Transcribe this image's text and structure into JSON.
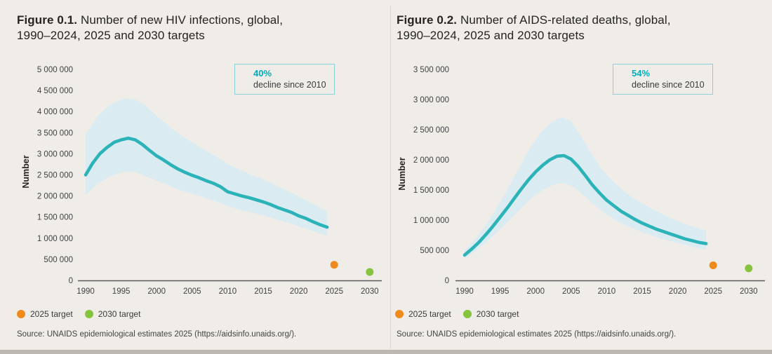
{
  "page": {
    "background_color": "#f0ede8",
    "divider_color": "#d8d4cf"
  },
  "colors": {
    "trend_line": "#2bb3b8",
    "uncertainty_band": "#daecf2",
    "annotation_accent": "#00aebb",
    "annotation_border": "#8ad0d9",
    "target_2025": "#ef8a1d",
    "target_2030": "#86c33e",
    "axis_line": "#59595b",
    "tick_text": "#414042"
  },
  "figures": [
    {
      "title_prefix": "Figure 0.1.",
      "title_line1": " Number of new HIV infections, global,",
      "title_line2": "1990–2024, 2025 and 2030 targets",
      "ylabel": "Number",
      "annotation": {
        "value": "40%",
        "text": "decline since 2010"
      },
      "legend": [
        {
          "label": "2025 target",
          "color": "#ef8a1d"
        },
        {
          "label": "2030 target",
          "color": "#86c33e"
        }
      ],
      "source": "Source: UNAIDS epidemiological estimates 2025 (https://aidsinfo.unaids.org/).",
      "chart_data": {
        "type": "line",
        "title": "Number of new HIV infections, global, 1990–2024, 2025 and 2030 targets",
        "xlabel": "",
        "ylabel": "Number",
        "ylim": [
          0,
          5000000
        ],
        "ytick_step": 500000,
        "xticks": [
          1990,
          1995,
          2000,
          2005,
          2010,
          2015,
          2020,
          2025,
          2030
        ],
        "grid": false,
        "annotation": "40% decline since 2010",
        "years": [
          1990,
          1991,
          1992,
          1993,
          1994,
          1995,
          1996,
          1997,
          1998,
          1999,
          2000,
          2001,
          2002,
          2003,
          2004,
          2005,
          2006,
          2007,
          2008,
          2009,
          2010,
          2011,
          2012,
          2013,
          2014,
          2015,
          2016,
          2017,
          2018,
          2019,
          2020,
          2021,
          2022,
          2023,
          2024
        ],
        "series": [
          {
            "name": "New HIV infections (estimate)",
            "values": [
              2500000,
              2780000,
              3000000,
              3150000,
              3270000,
              3330000,
              3370000,
              3330000,
              3220000,
              3080000,
              2950000,
              2850000,
              2740000,
              2640000,
              2560000,
              2490000,
              2430000,
              2360000,
              2300000,
              2220000,
              2100000,
              2050000,
              2000000,
              1960000,
              1910000,
              1860000,
              1800000,
              1730000,
              1670000,
              1610000,
              1530000,
              1470000,
              1390000,
              1320000,
              1260000
            ]
          }
        ],
        "band": {
          "name": "Uncertainty bounds",
          "upper": [
            3450000,
            3720000,
            3950000,
            4100000,
            4220000,
            4280000,
            4320000,
            4280000,
            4200000,
            4060000,
            3900000,
            3760000,
            3620000,
            3490000,
            3370000,
            3270000,
            3170000,
            3070000,
            2970000,
            2870000,
            2760000,
            2680000,
            2600000,
            2530000,
            2460000,
            2400000,
            2320000,
            2240000,
            2160000,
            2080000,
            1990000,
            1910000,
            1820000,
            1730000,
            1650000
          ],
          "lower": [
            2020000,
            2180000,
            2320000,
            2420000,
            2500000,
            2550000,
            2580000,
            2560000,
            2500000,
            2430000,
            2360000,
            2300000,
            2230000,
            2160000,
            2100000,
            2050000,
            2000000,
            1940000,
            1890000,
            1830000,
            1760000,
            1710000,
            1660000,
            1620000,
            1580000,
            1540000,
            1490000,
            1440000,
            1390000,
            1340000,
            1280000,
            1230000,
            1170000,
            1110000,
            1060000
          ]
        },
        "targets": [
          {
            "label": "2025 target",
            "year": 2025,
            "value": 370000,
            "color": "#ef8a1d"
          },
          {
            "label": "2030 target",
            "year": 2030,
            "value": 200000,
            "color": "#86c33e"
          }
        ]
      }
    },
    {
      "title_prefix": "Figure 0.2.",
      "title_line1": " Number of AIDS-related deaths, global,",
      "title_line2": "1990–2024, 2025 and 2030 targets",
      "ylabel": "Number",
      "annotation": {
        "value": "54%",
        "text": "decline since 2010"
      },
      "legend": [
        {
          "label": "2025 target",
          "color": "#ef8a1d"
        },
        {
          "label": "2030 target",
          "color": "#86c33e"
        }
      ],
      "source": "Source: UNAIDS epidemiological estimates 2025 (https://aidsinfo.unaids.org/).",
      "chart_data": {
        "type": "line",
        "title": "Number of AIDS-related deaths, global, 1990–2024, 2025 and 2030 targets",
        "xlabel": "",
        "ylabel": "Number",
        "ylim": [
          0,
          3500000
        ],
        "ytick_step": 500000,
        "xticks": [
          1990,
          1995,
          2000,
          2005,
          2010,
          2015,
          2020,
          2025,
          2030
        ],
        "grid": false,
        "annotation": "54% decline since 2010",
        "years": [
          1990,
          1991,
          1992,
          1993,
          1994,
          1995,
          1996,
          1997,
          1998,
          1999,
          2000,
          2001,
          2002,
          2003,
          2004,
          2005,
          2006,
          2007,
          2008,
          2009,
          2010,
          2011,
          2012,
          2013,
          2014,
          2015,
          2016,
          2017,
          2018,
          2019,
          2020,
          2021,
          2022,
          2023,
          2024
        ],
        "series": [
          {
            "name": "AIDS-related deaths (estimate)",
            "values": [
              420000,
              520000,
              630000,
              760000,
              900000,
              1050000,
              1200000,
              1360000,
              1520000,
              1670000,
              1800000,
              1910000,
              2000000,
              2060000,
              2070000,
              2010000,
              1890000,
              1740000,
              1580000,
              1450000,
              1330000,
              1240000,
              1150000,
              1080000,
              1010000,
              950000,
              900000,
              850000,
              810000,
              770000,
              730000,
              690000,
              660000,
              630000,
              610000
            ]
          }
        ],
        "band": {
          "name": "Uncertainty bounds",
          "upper": [
            500000,
            620000,
            760000,
            920000,
            1100000,
            1300000,
            1500000,
            1720000,
            1940000,
            2150000,
            2330000,
            2480000,
            2600000,
            2680000,
            2700000,
            2630000,
            2470000,
            2270000,
            2070000,
            1900000,
            1750000,
            1630000,
            1520000,
            1430000,
            1350000,
            1280000,
            1210000,
            1150000,
            1090000,
            1040000,
            990000,
            940000,
            900000,
            860000,
            830000
          ],
          "lower": [
            360000,
            440000,
            530000,
            630000,
            740000,
            850000,
            970000,
            1090000,
            1210000,
            1320000,
            1420000,
            1500000,
            1560000,
            1600000,
            1610000,
            1570000,
            1490000,
            1390000,
            1280000,
            1180000,
            1090000,
            1020000,
            950000,
            900000,
            850000,
            800000,
            760000,
            720000,
            680000,
            650000,
            620000,
            590000,
            560000,
            530000,
            510000
          ]
        },
        "targets": [
          {
            "label": "2025 target",
            "year": 2025,
            "value": 250000,
            "color": "#ef8a1d"
          },
          {
            "label": "2030 target",
            "year": 2030,
            "value": 200000,
            "color": "#86c33e"
          }
        ]
      }
    }
  ]
}
